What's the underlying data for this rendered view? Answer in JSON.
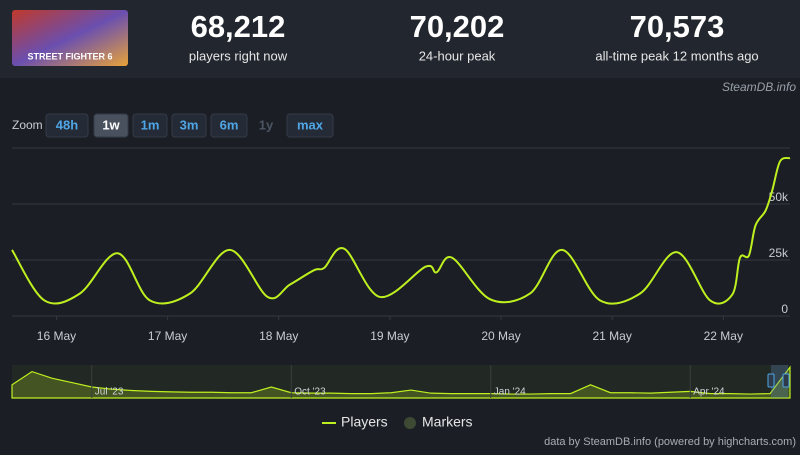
{
  "header": {
    "game_logo": "STREET FIGHTER 6",
    "stats": [
      {
        "value": "68,212",
        "label": "players right now"
      },
      {
        "value": "70,202",
        "label": "24-hour peak"
      },
      {
        "value": "70,573",
        "label": "all-time peak 12 months ago"
      }
    ],
    "source": "SteamDB.info"
  },
  "zoom": {
    "label": "Zoom",
    "buttons": [
      "48h",
      "1w",
      "1m",
      "3m",
      "6m",
      "1y",
      "max"
    ],
    "selected_index": 1,
    "disabled_index": 5
  },
  "chart_data": {
    "type": "line",
    "x": [
      15.6,
      15.89,
      16.21,
      16.55,
      16.84,
      17.2,
      17.56,
      17.9,
      18.1,
      18.32,
      18.41,
      18.59,
      18.91,
      19.32,
      19.42,
      19.56,
      19.9,
      20.26,
      20.55,
      20.89,
      21.25,
      21.58,
      21.88,
      22.08,
      22.15,
      22.23,
      22.29,
      22.38,
      22.44,
      22.51,
      22.6
    ],
    "series": [
      {
        "name": "Players",
        "color": "#bef01f",
        "values": [
          29500,
          7000,
          10000,
          28000,
          7000,
          10000,
          29500,
          8500,
          14000,
          20500,
          21500,
          30000,
          8500,
          22000,
          19500,
          26000,
          7500,
          10000,
          29500,
          7000,
          10000,
          28500,
          7000,
          9500,
          26000,
          27000,
          40500,
          47000,
          56000,
          69000,
          70500
        ]
      }
    ],
    "markers": {
      "name": "Markers",
      "color": "#3e4a33"
    },
    "xlim": [
      15.6,
      22.6
    ],
    "xticks": [
      {
        "value": 16,
        "label": "16 May"
      },
      {
        "value": 17,
        "label": "17 May"
      },
      {
        "value": 18,
        "label": "18 May"
      },
      {
        "value": 19,
        "label": "19 May"
      },
      {
        "value": 20,
        "label": "20 May"
      },
      {
        "value": 21,
        "label": "21 May"
      },
      {
        "value": 22,
        "label": "22 May"
      }
    ],
    "ylim": [
      0,
      75000
    ],
    "yticks": [
      0,
      {
        "value": 25000,
        "label": "25k"
      },
      {
        "value": 50000,
        "label": "50k"
      }
    ],
    "grid": true,
    "navigator": {
      "values": [
        30000,
        60000,
        45000,
        35000,
        25000,
        20000,
        17000,
        15000,
        14000,
        13000,
        13000,
        12000,
        12000,
        25000,
        12000,
        11000,
        11000,
        10000,
        10000,
        12000,
        18000,
        11000,
        10000,
        10000,
        10000,
        9000,
        9000,
        10000,
        10000,
        30000,
        12000,
        12000,
        11000,
        13000,
        15000,
        10000,
        10000,
        9000,
        10000,
        70000
      ],
      "xticks": [
        {
          "value": 4,
          "label": "Jul '23"
        },
        {
          "value": 14,
          "label": "Oct '23"
        },
        {
          "value": 24,
          "label": "Jan '24"
        },
        {
          "value": 34,
          "label": "Apr '24"
        }
      ]
    },
    "credit": "data by SteamDB.info (powered by highcharts.com)"
  }
}
